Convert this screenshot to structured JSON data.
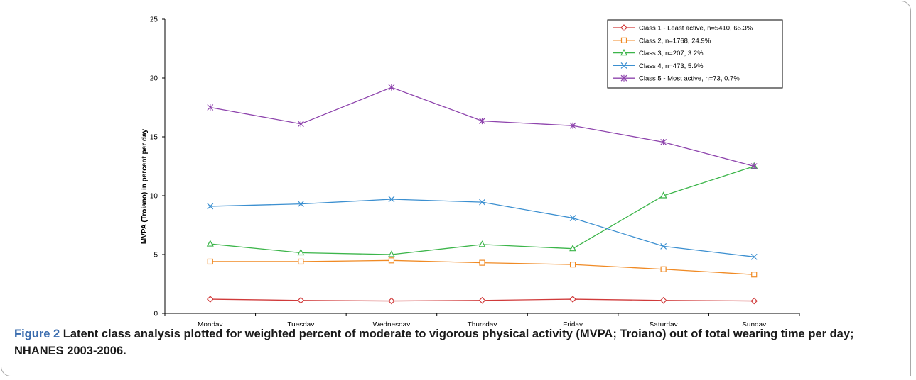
{
  "figure": {
    "label": "Figure 2",
    "caption": "Latent class analysis plotted for weighted percent of moderate to vigorous physical activity (MVPA; Troiano) out of total wearing time per day; NHANES 2003-2006."
  },
  "chart_data": {
    "type": "line",
    "xlabel": "",
    "ylabel": "MVPA (Troiano) in percent per day",
    "categories": [
      "Monday",
      "Tuesday",
      "Wednesday",
      "Thursday",
      "Friday",
      "Saturday",
      "Sunday"
    ],
    "ylim": [
      0,
      25
    ],
    "yticks": [
      0,
      5,
      10,
      15,
      20,
      25
    ],
    "grid": false,
    "legend_position": "top-right",
    "series": [
      {
        "name": "Class 1 - Least active, n=5410, 65.3%",
        "color": "#d03a3a",
        "marker": "diamond",
        "values": [
          1.2,
          1.1,
          1.05,
          1.1,
          1.2,
          1.1,
          1.05
        ]
      },
      {
        "name": "Class 2, n=1768, 24.9%",
        "color": "#f08a24",
        "marker": "square",
        "values": [
          4.4,
          4.4,
          4.5,
          4.3,
          4.15,
          3.75,
          3.3
        ]
      },
      {
        "name": "Class 3, n=207, 3.2%",
        "color": "#3cb54a",
        "marker": "triangle",
        "values": [
          5.9,
          5.15,
          5.0,
          5.85,
          5.5,
          10.0,
          12.5
        ]
      },
      {
        "name": "Class 4, n=473, 5.9%",
        "color": "#3b8fd0",
        "marker": "x",
        "values": [
          9.1,
          9.3,
          9.7,
          9.45,
          8.1,
          5.7,
          4.8
        ]
      },
      {
        "name": "Class 5 - Most active, n=73, 0.7%",
        "color": "#8e44ad",
        "marker": "star",
        "values": [
          17.5,
          16.1,
          19.2,
          16.35,
          15.95,
          14.55,
          12.5
        ]
      }
    ]
  }
}
